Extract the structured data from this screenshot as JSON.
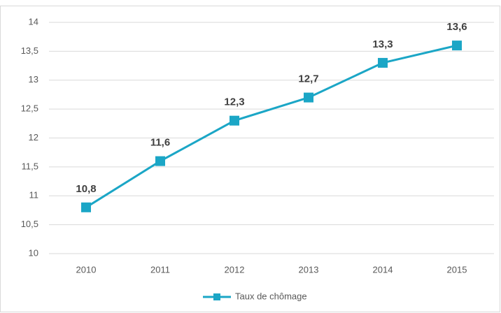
{
  "chart_data": {
    "type": "line",
    "categories": [
      "2010",
      "2011",
      "2012",
      "2013",
      "2014",
      "2015"
    ],
    "series": [
      {
        "name": "Taux de chômage",
        "color": "#1ba6c6",
        "values": [
          10.8,
          11.6,
          12.3,
          12.7,
          13.3,
          13.6
        ],
        "value_labels": [
          "10,8",
          "11,6",
          "12,3",
          "12,7",
          "13,3",
          "13,6"
        ]
      }
    ],
    "ylim": [
      10,
      14
    ],
    "yticks": [
      10,
      {
        "value": 10.5,
        "label": "10,5"
      },
      11,
      {
        "value": 11.5,
        "label": "11,5"
      },
      12,
      {
        "value": 12.5,
        "label": "12,5"
      },
      13,
      {
        "value": 13.5,
        "label": "13,5"
      },
      14
    ],
    "grid": true,
    "legend": "bottom"
  }
}
